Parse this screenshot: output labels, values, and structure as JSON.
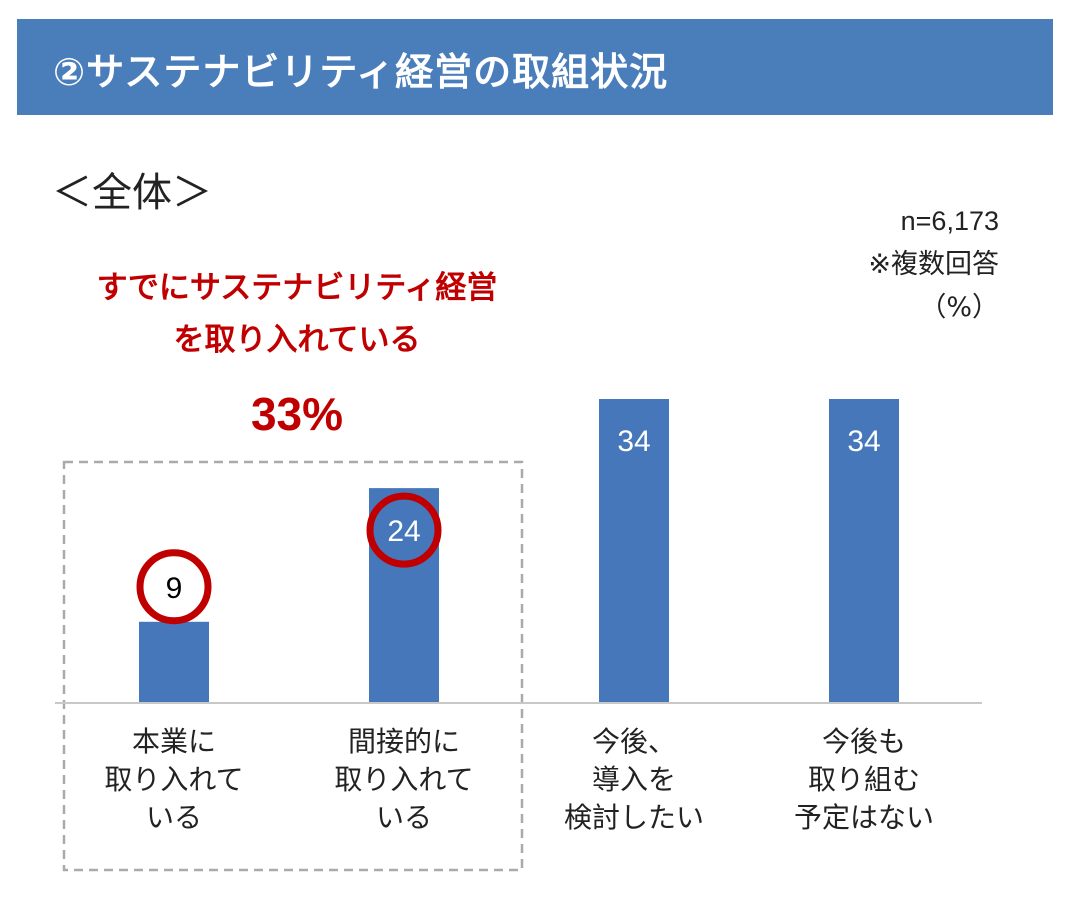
{
  "header": {
    "title": "②サステナビリティ経営の取組状況"
  },
  "section_label": "＜全体＞",
  "meta": {
    "sample": "n=6,173",
    "note": "※複数回答",
    "unit": "（%）"
  },
  "callout": {
    "line1": "すでにサステナビリティ経営",
    "line2": "を取り入れている",
    "value": "33%"
  },
  "colors": {
    "header": "#4a7ebb",
    "bar": "#4577ba",
    "highlight": "#c00000",
    "dashed_box": "#aaaaaa"
  },
  "chart_data": {
    "type": "bar",
    "categories": [
      "本業に\n取り入れて\nいる",
      "間接的に\n取り入れて\nいる",
      "今後、\n導入を\n検討したい",
      "今後も\n取り組む\n予定はない"
    ],
    "values": [
      9,
      24,
      34,
      34
    ],
    "value_labels": [
      "9",
      "24",
      "34",
      "34"
    ],
    "highlighted": [
      true,
      true,
      false,
      false
    ],
    "ylim": [
      0,
      34
    ],
    "grid": false,
    "legend": "none"
  }
}
